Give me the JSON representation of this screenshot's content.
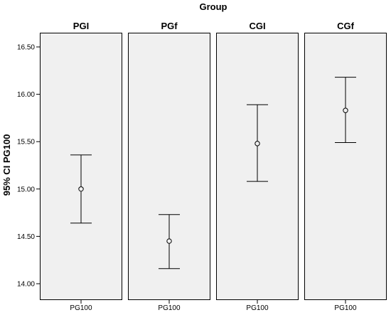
{
  "chart_data": {
    "type": "errorbar",
    "title": "Group",
    "ylabel": "95% CI PG100",
    "ylim": [
      14.0,
      16.6
    ],
    "yticks": [
      "14.00",
      "14.50",
      "15.00",
      "15.50",
      "16.00",
      "16.50"
    ],
    "ytick_values": [
      14.0,
      14.5,
      15.0,
      15.5,
      16.0,
      16.5
    ],
    "panels": [
      {
        "name": "PGI",
        "xtick": "PG100",
        "mean": 15.0,
        "lower": 14.64,
        "upper": 15.36
      },
      {
        "name": "PGf",
        "xtick": "PG100",
        "mean": 14.45,
        "lower": 14.16,
        "upper": 14.73
      },
      {
        "name": "CGI",
        "xtick": "PG100",
        "mean": 15.48,
        "lower": 15.08,
        "upper": 15.89
      },
      {
        "name": "CGf",
        "xtick": "PG100",
        "mean": 15.83,
        "lower": 15.49,
        "upper": 16.18
      }
    ],
    "grid": false,
    "legend": "none",
    "colors": {
      "panel_background": "#f0f0f0",
      "panel_border": "#000000",
      "marks": "#000000"
    }
  }
}
